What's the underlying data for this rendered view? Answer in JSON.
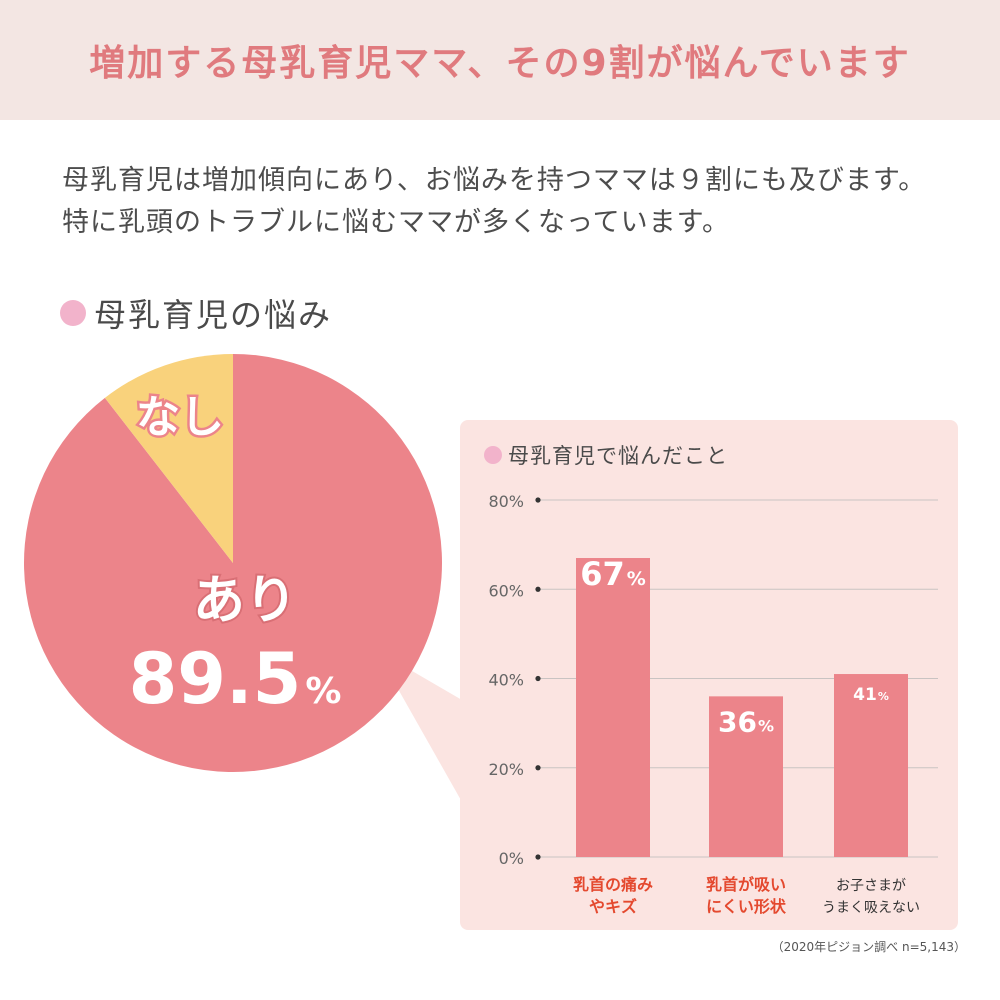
{
  "header": {
    "title": "増加する母乳育児ママ、その9割が悩んでいます"
  },
  "intro": {
    "line1": "母乳育児は増加傾向にあり、お悩みを持つママは９割にも及びます。",
    "line2": "特に乳頭のトラブルに悩むママが多くなっています。"
  },
  "section": {
    "heading": "母乳育児の悩み"
  },
  "colors": {
    "accent": "#e07a7e",
    "pie_main": "#ec848a",
    "pie_minor": "#f9d27c",
    "bar": "#ec848a",
    "panel_bg": "#fbe4e1",
    "header_bg": "#f3e6e3",
    "bullet": "#f2b3cb",
    "label_red": "#e4492f"
  },
  "chart_data": [
    {
      "type": "pie",
      "title": "母乳育児の悩み",
      "slices": [
        {
          "label": "あり",
          "value": 89.5,
          "value_text": "89.5",
          "unit": "%"
        },
        {
          "label": "なし",
          "value": 10.5
        }
      ]
    },
    {
      "type": "bar",
      "title": "母乳育児で悩んだこと",
      "categories": [
        [
          "乳首の痛み",
          "やキズ"
        ],
        [
          "乳首が吸い",
          "にくい形状"
        ],
        [
          "お子さまが",
          "うまく吸えない"
        ]
      ],
      "values": [
        67,
        36,
        41
      ],
      "value_unit": "%",
      "ylim": [
        0,
        80
      ],
      "yticks": [
        0,
        20,
        40,
        60,
        80
      ],
      "ytick_labels": [
        "0%",
        "20%",
        "40%",
        "60%",
        "80%"
      ],
      "grid": true
    }
  ],
  "source": "（2020年ピジョン調べ n=5,143）"
}
